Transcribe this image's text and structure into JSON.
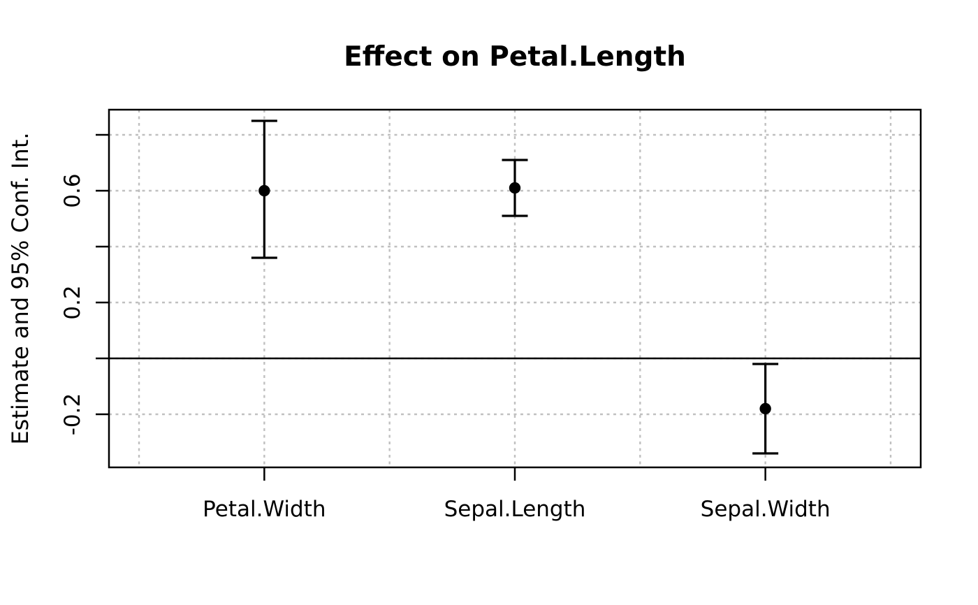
{
  "chart_data": {
    "type": "scatter",
    "variant": "coefficient-dot-whisker-plot",
    "title": "Effect on Petal.Length",
    "xlabel": "",
    "ylabel": "Estimate and 95% Conf. Int.",
    "confidence_level": "95%",
    "categories": [
      "Petal.Width",
      "Sepal.Length",
      "Sepal.Width"
    ],
    "points": [
      {
        "term": "Petal.Width",
        "estimate": 0.6,
        "ci_lower": 0.36,
        "ci_upper": 0.85
      },
      {
        "term": "Sepal.Length",
        "estimate": 0.61,
        "ci_lower": 0.51,
        "ci_upper": 0.71
      },
      {
        "term": "Sepal.Width",
        "estimate": -0.18,
        "ci_lower": -0.34,
        "ci_upper": -0.02
      }
    ],
    "reference_line_y": 0,
    "x_positions": [
      1,
      2,
      3
    ],
    "xlim": [
      0.38,
      3.62
    ],
    "ylim": [
      -0.39,
      0.89
    ],
    "yticks": [
      0.8,
      0.6,
      0.4,
      0.2,
      0.0,
      -0.2
    ],
    "ytick_labels": [
      {
        "value": 0.6,
        "label": "0.6"
      },
      {
        "value": 0.2,
        "label": "0.2"
      },
      {
        "value": -0.2,
        "label": "-0.2"
      }
    ],
    "x_gridlines": [
      0.5,
      1.0,
      1.5,
      2.0,
      2.5,
      3.0,
      3.5
    ],
    "grid": {
      "visible": true,
      "style": "dashed"
    },
    "legend": {
      "visible": false
    },
    "colors": {
      "foreground": "#000000",
      "grid": "#c0c0c0",
      "background": "#ffffff"
    }
  }
}
